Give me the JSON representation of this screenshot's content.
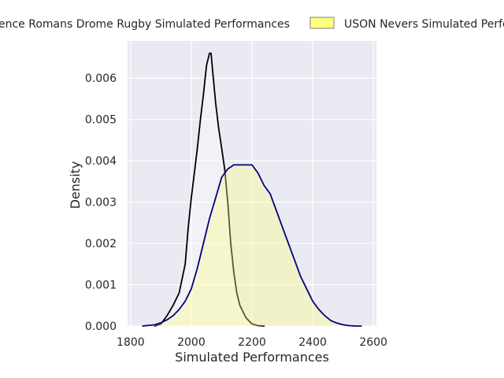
{
  "chart_data": {
    "type": "area",
    "title": "",
    "xlabel": "Simulated Performances",
    "ylabel": "Density",
    "xlim": [
      1790,
      2610
    ],
    "ylim": [
      0,
      0.0069
    ],
    "x_ticks": [
      1800,
      2000,
      2200,
      2400,
      2600
    ],
    "y_ticks": [
      0.0,
      0.001,
      0.002,
      0.003,
      0.004,
      0.005,
      0.006
    ],
    "x_tick_labels": [
      "1800",
      "2000",
      "2200",
      "2400",
      "2600"
    ],
    "y_tick_labels": [
      "0.000",
      "0.001",
      "0.002",
      "0.003",
      "0.004",
      "0.005",
      "0.006"
    ],
    "grid": true,
    "background": "#EAEAF2",
    "legend_position": "top-center",
    "series": [
      {
        "name": "Valence Romans Drome Rugby Simulated Performances",
        "legend_label": "ence Romans Drome Rugby Simulated Performances",
        "line_color": "#000000",
        "fill_color": "#FFFFFF",
        "fill_opacity": 0.35,
        "x": [
          1880,
          1900,
          1920,
          1940,
          1960,
          1980,
          1990,
          2000,
          2010,
          2020,
          2030,
          2040,
          2050,
          2060,
          2065,
          2070,
          2080,
          2090,
          2100,
          2110,
          2120,
          2130,
          2140,
          2150,
          2160,
          2180,
          2200,
          2220,
          2240
        ],
        "y": [
          0.0,
          5e-05,
          0.00025,
          0.0005,
          0.0008,
          0.0015,
          0.0024,
          0.0031,
          0.0037,
          0.0043,
          0.005,
          0.0056,
          0.0063,
          0.0066,
          0.0066,
          0.0062,
          0.0054,
          0.0048,
          0.0043,
          0.0038,
          0.003,
          0.002,
          0.0013,
          0.0008,
          0.0005,
          0.0002,
          5e-05,
          1e-05,
          0.0
        ]
      },
      {
        "name": "USON Nevers Simulated Performances",
        "legend_label": "USON Nevers Simulated Perfo",
        "line_color": "#000080",
        "fill_color": "#FFFF80",
        "fill_opacity": 0.35,
        "x": [
          1840,
          1880,
          1900,
          1920,
          1940,
          1960,
          1980,
          2000,
          2020,
          2040,
          2060,
          2080,
          2100,
          2120,
          2140,
          2160,
          2180,
          2200,
          2220,
          2240,
          2260,
          2280,
          2300,
          2320,
          2340,
          2360,
          2380,
          2400,
          2420,
          2440,
          2460,
          2480,
          2500,
          2520,
          2540,
          2560
        ],
        "y": [
          0.0,
          3e-05,
          8e-05,
          0.00015,
          0.00025,
          0.0004,
          0.0006,
          0.0009,
          0.0014,
          0.002,
          0.0026,
          0.0031,
          0.0036,
          0.0038,
          0.0039,
          0.0039,
          0.0039,
          0.0039,
          0.0037,
          0.0034,
          0.0032,
          0.0028,
          0.0024,
          0.002,
          0.0016,
          0.0012,
          0.0009,
          0.0006,
          0.0004,
          0.00025,
          0.00013,
          7e-05,
          3e-05,
          1e-05,
          0.0,
          0.0
        ]
      }
    ]
  }
}
